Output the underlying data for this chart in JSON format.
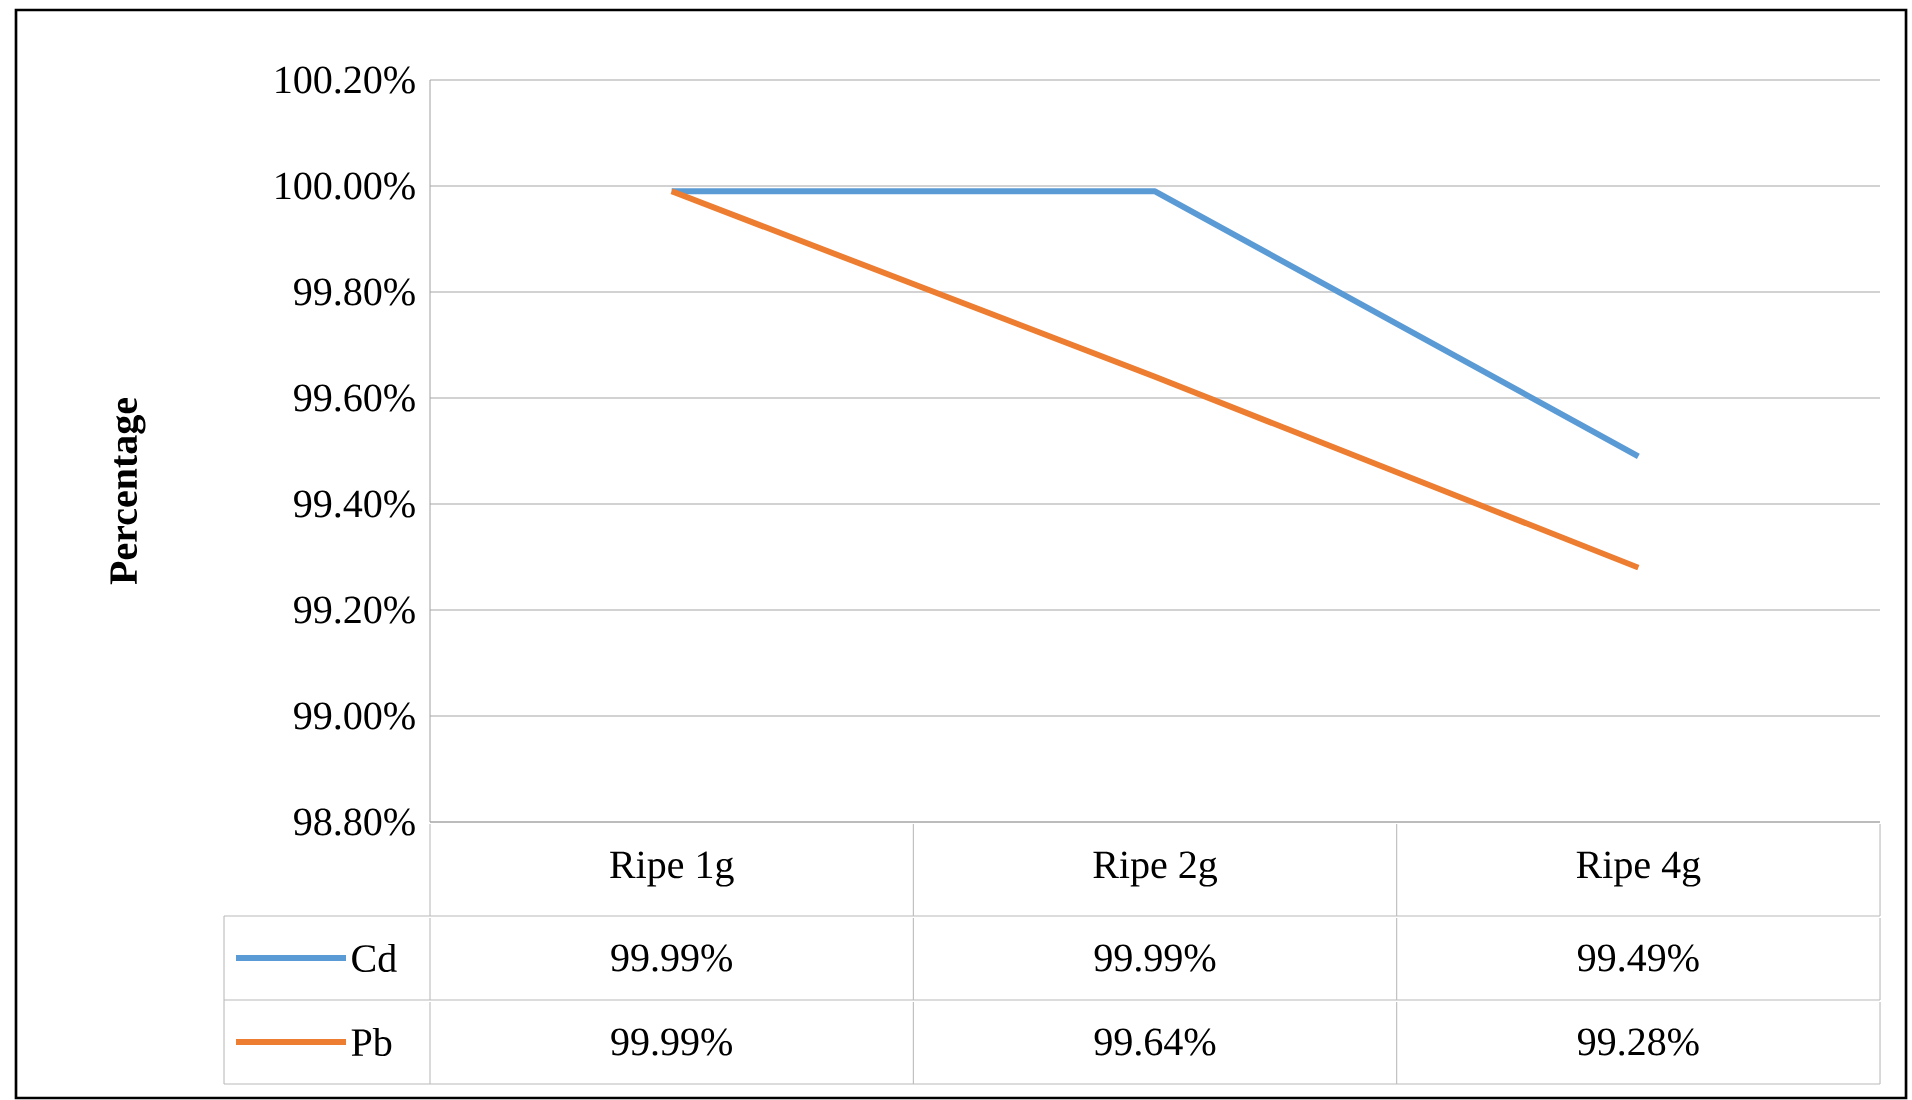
{
  "chart_data": {
    "type": "line",
    "ylabel": "Percentage",
    "categories": [
      "Ripe 1g",
      "Ripe 2g",
      "Ripe 4g"
    ],
    "series": [
      {
        "name": "Cd",
        "color": "#5b9bd5",
        "values": [
          99.99,
          99.99,
          99.49
        ],
        "value_labels": [
          "99.99%",
          "99.99%",
          "99.49%"
        ]
      },
      {
        "name": "Pb",
        "color": "#ed7d31",
        "values": [
          99.99,
          99.64,
          99.28
        ],
        "value_labels": [
          "99.99%",
          "99.64%",
          "99.28%"
        ]
      }
    ],
    "ylim": [
      98.8,
      100.2
    ],
    "yticks": [
      {
        "value": 98.8,
        "label": "98.80%"
      },
      {
        "value": 99.0,
        "label": "99.00%"
      },
      {
        "value": 99.2,
        "label": "99.20%"
      },
      {
        "value": 99.4,
        "label": "99.40%"
      },
      {
        "value": 99.6,
        "label": "99.60%"
      },
      {
        "value": 99.8,
        "label": "99.80%"
      },
      {
        "value": 100.0,
        "label": "100.00%"
      },
      {
        "value": 100.2,
        "label": "100.20%"
      }
    ],
    "grid": "y",
    "legend": "bottom",
    "marker": "none",
    "line_style": "solid"
  }
}
